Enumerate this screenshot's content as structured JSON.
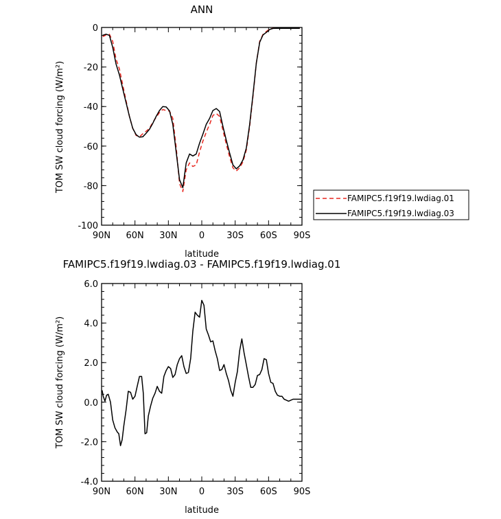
{
  "chart_data": [
    {
      "type": "line",
      "title": "ANN",
      "xlabel": "latitude",
      "ylabel": "TOM SW cloud forcing (W/m²)",
      "xlim": [
        90,
        -90
      ],
      "ylim": [
        -100,
        0
      ],
      "x_ticks": [
        90,
        60,
        30,
        0,
        -30,
        -60,
        -90
      ],
      "x_tick_labels": [
        "90N",
        "60N",
        "30N",
        "0",
        "30S",
        "60S",
        "90S"
      ],
      "y_ticks": [
        0,
        -20,
        -40,
        -60,
        -80,
        -100
      ],
      "y_tick_labels": [
        "0",
        "-20",
        "-40",
        "-60",
        "-80",
        "-100"
      ],
      "grid": false,
      "legend_position": "right",
      "series": [
        {
          "name": "FAMIPC5.f19f19.lwdiag.01",
          "color": "#e8261e",
          "dash": "dashed",
          "x": [
            89,
            86,
            83,
            80,
            77,
            74,
            71,
            68,
            65,
            62,
            59,
            56,
            53,
            50,
            47,
            44,
            41,
            38,
            35,
            32,
            29,
            26,
            23,
            20,
            17,
            14,
            11,
            8,
            5,
            2,
            -1,
            -4,
            -7,
            -10,
            -13,
            -16,
            -19,
            -22,
            -25,
            -28,
            -31,
            -34,
            -37,
            -40,
            -43,
            -46,
            -49,
            -52,
            -55,
            -58,
            -61,
            -64,
            -67,
            -70,
            -73,
            -76,
            -79,
            -82,
            -85,
            -88
          ],
          "y": [
            -4.7,
            -3.8,
            -3.4,
            -7,
            -16,
            -21,
            -29,
            -37,
            -45,
            -51,
            -54.6,
            -55.3,
            -53.8,
            -52.5,
            -51,
            -48,
            -45.5,
            -43,
            -41.5,
            -42,
            -42.3,
            -46,
            -60.5,
            -79,
            -83,
            -72,
            -68.5,
            -70.3,
            -69.5,
            -63,
            -57.5,
            -53,
            -49,
            -44.5,
            -43.5,
            -45,
            -52,
            -59,
            -65.5,
            -71,
            -72.6,
            -71,
            -68,
            -62,
            -50,
            -35,
            -18,
            -7,
            -3.5,
            -2,
            -0.8,
            -0.4,
            -0.4,
            -0.4,
            -0.4,
            -0.4,
            -0.4,
            -0.4,
            -0.4,
            -0.4
          ]
        },
        {
          "name": "FAMIPC5.f19f19.lwdiag.03",
          "color": "#000000",
          "dash": "solid",
          "x": [
            89,
            86,
            83,
            80,
            77,
            74,
            71,
            68,
            65,
            62,
            59,
            56,
            53,
            50,
            47,
            44,
            41,
            38,
            35,
            32,
            29,
            26,
            23,
            20,
            17,
            14,
            11,
            8,
            5,
            2,
            -1,
            -4,
            -7,
            -10,
            -13,
            -16,
            -19,
            -22,
            -25,
            -28,
            -31,
            -34,
            -37,
            -40,
            -43,
            -46,
            -49,
            -52,
            -55,
            -58,
            -61,
            -64,
            -67,
            -70,
            -73,
            -76,
            -79,
            -82,
            -85,
            -88
          ],
          "y": [
            -4,
            -3.4,
            -4,
            -10,
            -18.5,
            -24,
            -31,
            -38,
            -45,
            -51,
            -54.2,
            -55.5,
            -55.3,
            -53.5,
            -51.5,
            -48.5,
            -45,
            -42,
            -40,
            -40.2,
            -42.2,
            -49,
            -63,
            -77,
            -81,
            -68.5,
            -64,
            -65,
            -64,
            -58.5,
            -54,
            -49,
            -46,
            -42,
            -41,
            -42.5,
            -50,
            -57,
            -63.5,
            -69.5,
            -71.5,
            -70,
            -67,
            -61,
            -49,
            -34,
            -18,
            -7.5,
            -3.8,
            -2.5,
            -1,
            -0.5,
            -0.4,
            -0.4,
            -0.4,
            -0.4,
            -0.4,
            -0.4,
            -0.4,
            -0.4
          ]
        }
      ]
    },
    {
      "type": "line",
      "title": "FAMIPC5.f19f19.lwdiag.03 - FAMIPC5.f19f19.lwdiag.01",
      "xlabel": "latitude",
      "ylabel": "TOM SW cloud forcing (W/m²)",
      "xlim": [
        90,
        -90
      ],
      "ylim": [
        -4,
        6
      ],
      "x_ticks": [
        90,
        60,
        30,
        0,
        -30,
        -60,
        -90
      ],
      "x_tick_labels": [
        "90N",
        "60N",
        "30N",
        "0",
        "30S",
        "60S",
        "90S"
      ],
      "y_ticks": [
        6,
        4,
        2,
        0,
        -2,
        -4
      ],
      "y_tick_labels": [
        "6.0",
        "4.0",
        "2.0",
        "0.0",
        "-2.0",
        "-4.0"
      ],
      "grid": false,
      "series": [
        {
          "color": "#000000",
          "dash": "solid",
          "x": [
            89.5,
            88.5,
            87,
            85.5,
            84,
            82,
            80,
            78,
            76,
            74.5,
            73,
            71.5,
            70,
            68,
            66,
            64,
            62,
            60,
            58,
            56,
            54,
            52.5,
            51,
            49.5,
            48,
            46,
            44,
            42,
            40,
            38,
            36,
            34,
            32,
            30,
            28,
            26,
            24,
            22,
            20,
            18,
            16,
            14,
            12,
            10,
            8,
            6,
            4,
            2,
            0,
            -2,
            -4,
            -6,
            -8,
            -10,
            -12,
            -14,
            -16,
            -18,
            -20,
            -22,
            -24,
            -26,
            -28,
            -30,
            -32,
            -34,
            -36,
            -38,
            -40,
            -42,
            -44,
            -46,
            -48,
            -50,
            -52,
            -54,
            -56,
            -58,
            -60,
            -62,
            -64,
            -66,
            -68,
            -70,
            -72,
            -74,
            -76,
            -78,
            -80,
            -82,
            -84,
            -86,
            -88,
            -89.5
          ],
          "y": [
            0.6,
            0.3,
            0.05,
            0.35,
            0.4,
            0,
            -0.9,
            -1.3,
            -1.5,
            -1.6,
            -2.2,
            -1.9,
            -1.2,
            -0.4,
            0.55,
            0.5,
            0.15,
            0.3,
            0.8,
            1.3,
            1.3,
            0.45,
            -1.6,
            -1.55,
            -0.7,
            -0.2,
            0.2,
            0.45,
            0.8,
            0.55,
            0.45,
            1.3,
            1.6,
            1.8,
            1.7,
            1.25,
            1.4,
            1.9,
            2.2,
            2.35,
            1.8,
            1.45,
            1.5,
            2.2,
            3.6,
            4.55,
            4.4,
            4.3,
            5.15,
            4.9,
            3.7,
            3.4,
            3.05,
            3.1,
            2.6,
            2.2,
            1.6,
            1.65,
            1.9,
            1.45,
            1.1,
            0.6,
            0.3,
            1.0,
            1.55,
            2.6,
            3.2,
            2.5,
            1.9,
            1.3,
            0.75,
            0.75,
            0.9,
            1.35,
            1.4,
            1.65,
            2.2,
            2.15,
            1.45,
            1.0,
            0.95,
            0.55,
            0.35,
            0.3,
            0.3,
            0.15,
            0.1,
            0.05,
            0.1,
            0.15,
            0.15,
            0.15,
            0.15,
            0.15
          ]
        }
      ]
    }
  ]
}
